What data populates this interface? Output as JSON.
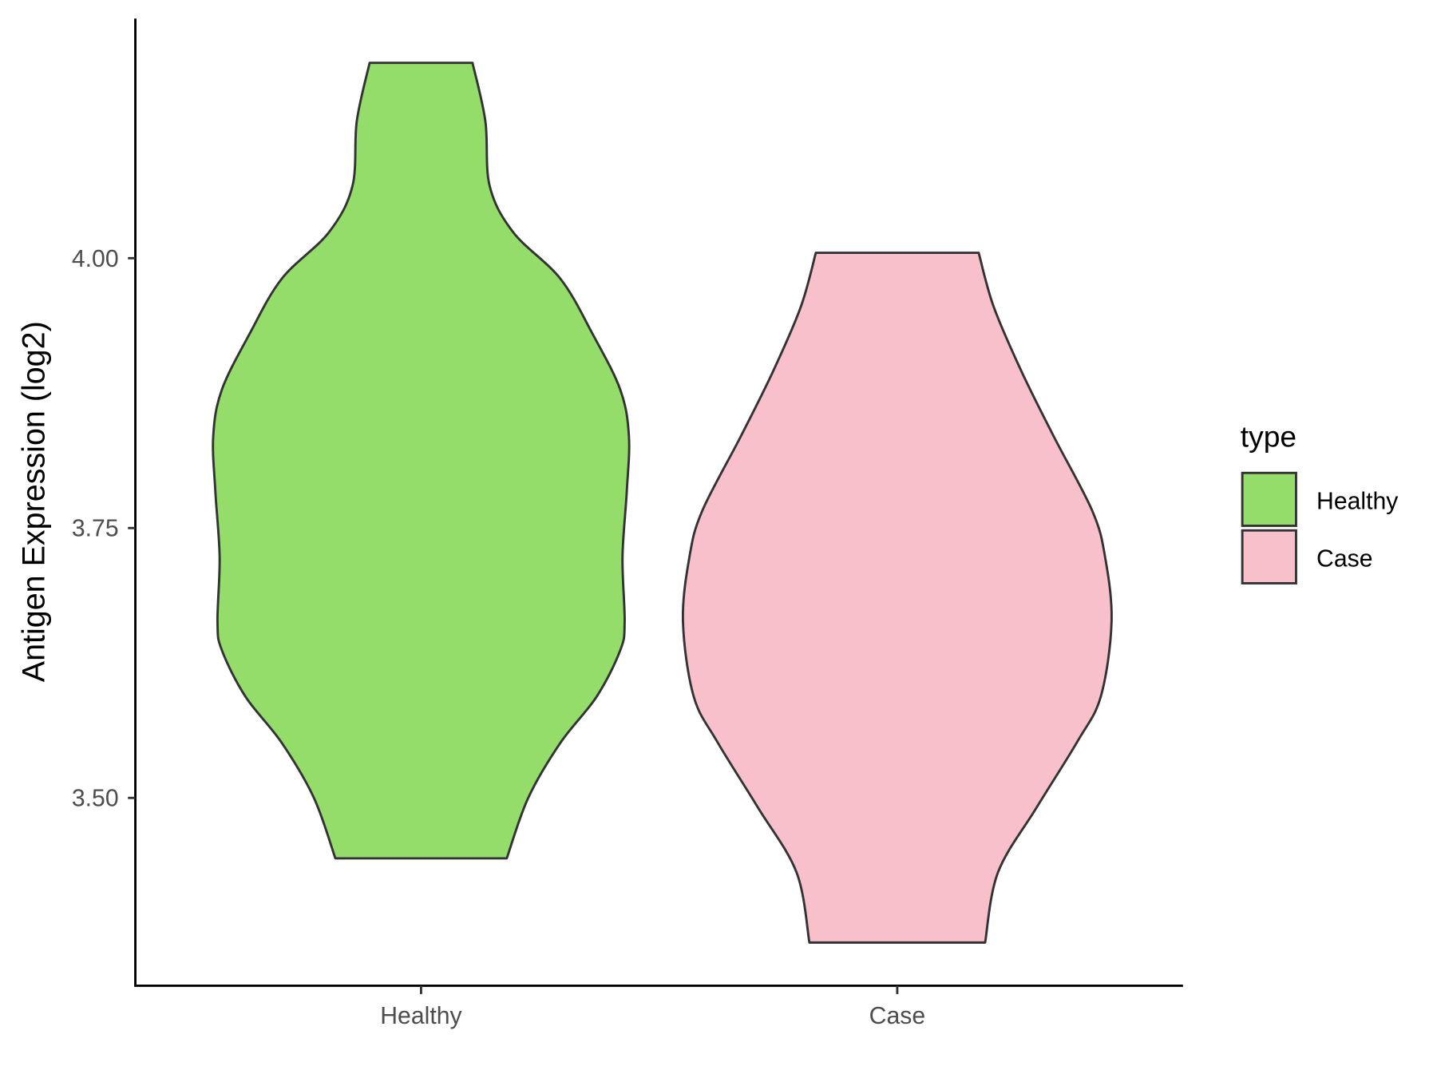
{
  "chart_data": {
    "type": "violin",
    "y_label": "Antigen Expression (log2)",
    "ylim": [
      3.326,
      4.222
    ],
    "yticks": [
      {
        "value": 3.5,
        "label": "3.50"
      },
      {
        "value": 3.75,
        "label": "3.75"
      },
      {
        "value": 4.0,
        "label": "4.00"
      }
    ],
    "categories": [
      "Healthy",
      "Case"
    ],
    "legend_title": "type",
    "legend_position": "right",
    "series": [
      {
        "name": "Healthy",
        "color": "#95dd6b",
        "y": [
          4.181,
          4.127,
          4.067,
          4.024,
          3.981,
          3.93,
          3.878,
          3.835,
          3.784,
          3.723,
          3.663,
          3.637,
          3.594,
          3.551,
          3.5,
          3.444
        ],
        "width": [
          0.24,
          0.3,
          0.32,
          0.43,
          0.65,
          0.8,
          0.93,
          0.97,
          0.96,
          0.94,
          0.95,
          0.93,
          0.82,
          0.65,
          0.5,
          0.4
        ]
      },
      {
        "name": "Case",
        "color": "#f7c0cb",
        "y": [
          4.005,
          3.955,
          3.895,
          3.835,
          3.766,
          3.723,
          3.663,
          3.594,
          3.552,
          3.491,
          3.431,
          3.366
        ],
        "width": [
          0.38,
          0.45,
          0.58,
          0.73,
          0.91,
          0.97,
          1,
          0.95,
          0.84,
          0.65,
          0.47,
          0.41
        ]
      }
    ]
  }
}
